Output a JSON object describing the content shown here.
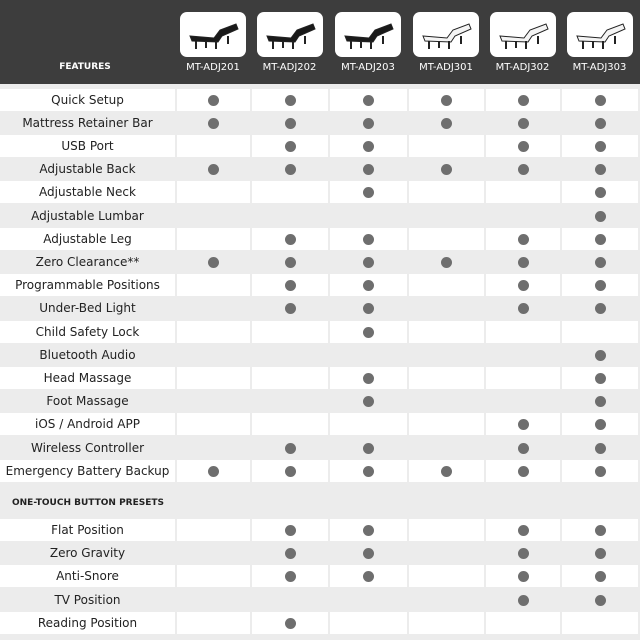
{
  "header": {
    "features_label": "FEATURES",
    "models": [
      "MT-ADJ201",
      "MT-ADJ202",
      "MT-ADJ203",
      "MT-ADJ301",
      "MT-ADJ302",
      "MT-ADJ303"
    ],
    "model_bed_colors": [
      "black",
      "black",
      "black",
      "white",
      "white",
      "white"
    ]
  },
  "colors": {
    "header_bg": "#3d3d3d",
    "row_alt": "#ececec",
    "row": "#ffffff",
    "dot": "#6e6e6e"
  },
  "features": [
    {
      "label": "Quick Setup",
      "checks": [
        1,
        1,
        1,
        1,
        1,
        1
      ]
    },
    {
      "label": "Mattress Retainer Bar",
      "checks": [
        1,
        1,
        1,
        1,
        1,
        1
      ]
    },
    {
      "label": "USB Port",
      "checks": [
        0,
        1,
        1,
        0,
        1,
        1
      ]
    },
    {
      "label": "Adjustable Back",
      "checks": [
        1,
        1,
        1,
        1,
        1,
        1
      ]
    },
    {
      "label": "Adjustable Neck",
      "checks": [
        0,
        0,
        1,
        0,
        0,
        1
      ]
    },
    {
      "label": "Adjustable Lumbar",
      "checks": [
        0,
        0,
        0,
        0,
        0,
        1
      ]
    },
    {
      "label": "Adjustable Leg",
      "checks": [
        0,
        1,
        1,
        0,
        1,
        1
      ]
    },
    {
      "label": "Zero Clearance**",
      "checks": [
        1,
        1,
        1,
        1,
        1,
        1
      ]
    },
    {
      "label": "Programmable Positions",
      "checks": [
        0,
        1,
        1,
        0,
        1,
        1
      ]
    },
    {
      "label": "Under-Bed Light",
      "checks": [
        0,
        1,
        1,
        0,
        1,
        1
      ]
    },
    {
      "label": "Child Safety Lock",
      "checks": [
        0,
        0,
        1,
        0,
        0,
        0
      ]
    },
    {
      "label": "Bluetooth Audio",
      "checks": [
        0,
        0,
        0,
        0,
        0,
        1
      ]
    },
    {
      "label": "Head Massage",
      "checks": [
        0,
        0,
        1,
        0,
        0,
        1
      ]
    },
    {
      "label": "Foot Massage",
      "checks": [
        0,
        0,
        1,
        0,
        0,
        1
      ]
    },
    {
      "label": "iOS / Android APP",
      "checks": [
        0,
        0,
        0,
        0,
        1,
        1
      ]
    },
    {
      "label": "Wireless Controller",
      "checks": [
        0,
        1,
        1,
        0,
        1,
        1
      ]
    },
    {
      "label": "Emergency Battery Backup",
      "checks": [
        1,
        1,
        1,
        1,
        1,
        1
      ]
    }
  ],
  "presets": {
    "title": "ONE-TOUCH BUTTON PRESETS",
    "items": [
      {
        "label": "Flat Position",
        "checks": [
          0,
          1,
          1,
          0,
          1,
          1
        ]
      },
      {
        "label": "Zero Gravity",
        "checks": [
          0,
          1,
          1,
          0,
          1,
          1
        ]
      },
      {
        "label": "Anti-Snore",
        "checks": [
          0,
          1,
          1,
          0,
          1,
          1
        ]
      },
      {
        "label": "TV Position",
        "checks": [
          0,
          0,
          0,
          0,
          1,
          1
        ]
      },
      {
        "label": "Reading Position",
        "checks": [
          0,
          1,
          0,
          0,
          0,
          0
        ]
      }
    ]
  }
}
